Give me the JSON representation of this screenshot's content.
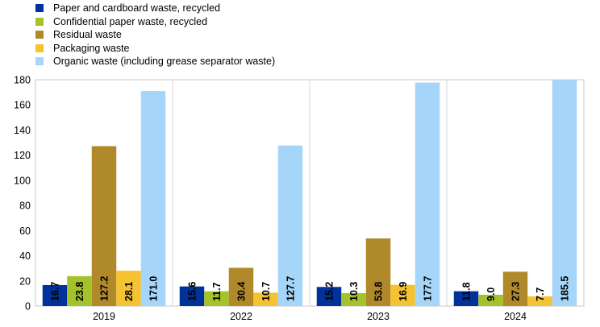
{
  "chart_data": {
    "type": "bar",
    "categories": [
      "2019",
      "2022",
      "2023",
      "2024"
    ],
    "series": [
      {
        "name": "Paper and cardboard waste, recycled",
        "color": "#003299",
        "values": [
          16.7,
          15.6,
          15.2,
          11.8
        ]
      },
      {
        "name": "Confidential paper waste, recycled",
        "color": "#a5c22b",
        "values": [
          23.8,
          11.7,
          10.3,
          9.0
        ]
      },
      {
        "name": "Residual waste",
        "color": "#b08a2a",
        "values": [
          127.2,
          30.4,
          53.8,
          27.3
        ]
      },
      {
        "name": "Packaging waste",
        "color": "#f5c231",
        "values": [
          28.1,
          10.7,
          16.9,
          7.7
        ]
      },
      {
        "name": "Organic waste (including grease separator waste)",
        "color": "#a5d6f9",
        "values": [
          171.0,
          127.7,
          177.7,
          185.5
        ]
      }
    ],
    "ylim": [
      0,
      180
    ],
    "yticks": [
      0,
      20,
      40,
      60,
      80,
      100,
      120,
      140,
      160,
      180
    ],
    "grid": "vertical separators between categories",
    "legend_position": "top-left",
    "data_labels": "vertical, inside bottom of bars"
  }
}
